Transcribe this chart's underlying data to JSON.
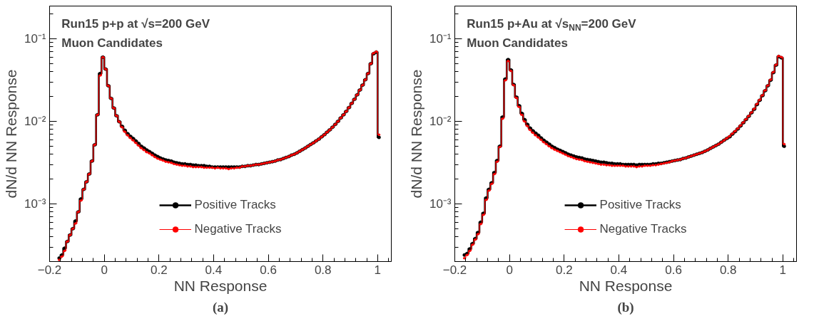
{
  "chart_data": [
    {
      "type": "step",
      "title": "Run15 p+p at √s=200 GeV",
      "subtitle": "Muon Candidates",
      "xlabel": "NN Response",
      "ylabel": "dN/d NN Response",
      "annotations": [
        "(a)"
      ],
      "x": [
        -0.165,
        -0.155,
        -0.145,
        -0.135,
        -0.125,
        -0.115,
        -0.105,
        -0.095,
        -0.085,
        -0.075,
        -0.065,
        -0.055,
        -0.045,
        -0.035,
        -0.025,
        -0.015,
        -0.005,
        0.005,
        0.015,
        0.025,
        0.035,
        0.045,
        0.055,
        0.065,
        0.075,
        0.085,
        0.095,
        0.105,
        0.115,
        0.125,
        0.135,
        0.145,
        0.155,
        0.165,
        0.175,
        0.185,
        0.195,
        0.205,
        0.215,
        0.225,
        0.235,
        0.245,
        0.255,
        0.265,
        0.275,
        0.285,
        0.295,
        0.305,
        0.315,
        0.325,
        0.335,
        0.345,
        0.355,
        0.365,
        0.375,
        0.385,
        0.395,
        0.405,
        0.415,
        0.425,
        0.435,
        0.445,
        0.455,
        0.465,
        0.475,
        0.485,
        0.495,
        0.505,
        0.515,
        0.525,
        0.535,
        0.545,
        0.555,
        0.565,
        0.575,
        0.585,
        0.595,
        0.605,
        0.615,
        0.625,
        0.635,
        0.645,
        0.655,
        0.665,
        0.675,
        0.685,
        0.695,
        0.705,
        0.715,
        0.725,
        0.735,
        0.745,
        0.755,
        0.765,
        0.775,
        0.785,
        0.795,
        0.805,
        0.815,
        0.825,
        0.835,
        0.845,
        0.855,
        0.865,
        0.875,
        0.885,
        0.895,
        0.905,
        0.915,
        0.925,
        0.935,
        0.945,
        0.955,
        0.965,
        0.975,
        0.985,
        0.995,
        1.005
      ],
      "series": [
        {
          "name": "Positive Tracks",
          "color": "#000000",
          "values": [
            0.00022,
            0.00024,
            0.00029,
            0.00035,
            0.00042,
            0.0005,
            0.00062,
            0.0008,
            0.00115,
            0.0015,
            0.00185,
            0.0023,
            0.0033,
            0.0052,
            0.012,
            0.038,
            0.06,
            0.043,
            0.027,
            0.019,
            0.0145,
            0.0117,
            0.0099,
            0.0087,
            0.0078,
            0.0071,
            0.0066,
            0.0062,
            0.0058,
            0.0054,
            0.005,
            0.00475,
            0.0045,
            0.0043,
            0.0041,
            0.0039,
            0.00375,
            0.0036,
            0.0035,
            0.0034,
            0.00335,
            0.0033,
            0.0032,
            0.00315,
            0.0031,
            0.00305,
            0.00305,
            0.003,
            0.003,
            0.00295,
            0.00295,
            0.0029,
            0.0029,
            0.0029,
            0.00285,
            0.00285,
            0.0028,
            0.0028,
            0.0028,
            0.0028,
            0.0028,
            0.0028,
            0.0028,
            0.0028,
            0.0028,
            0.0028,
            0.0028,
            0.00285,
            0.00285,
            0.0029,
            0.0029,
            0.00295,
            0.003,
            0.003,
            0.00305,
            0.0031,
            0.00315,
            0.0032,
            0.00325,
            0.0033,
            0.0034,
            0.00345,
            0.00355,
            0.00365,
            0.00375,
            0.0039,
            0.004,
            0.00415,
            0.00435,
            0.00455,
            0.00475,
            0.005,
            0.00525,
            0.0055,
            0.0058,
            0.0061,
            0.0065,
            0.0069,
            0.0074,
            0.0079,
            0.0085,
            0.0092,
            0.01,
            0.011,
            0.012,
            0.0132,
            0.0147,
            0.0165,
            0.0185,
            0.021,
            0.024,
            0.0275,
            0.032,
            0.038,
            0.05,
            0.066,
            0.069,
            0.0064
          ]
        },
        {
          "name": "Negative Tracks",
          "color": "#ff0000",
          "values": [
            0.00021,
            0.00023,
            0.00027,
            0.00035,
            0.00042,
            0.0005,
            0.00058,
            0.0008,
            0.0011,
            0.0015,
            0.00185,
            0.0023,
            0.0033,
            0.0052,
            0.012,
            0.036,
            0.06,
            0.043,
            0.027,
            0.019,
            0.0145,
            0.0117,
            0.0099,
            0.0085,
            0.0075,
            0.0068,
            0.0063,
            0.0059,
            0.0055,
            0.0051,
            0.00475,
            0.0045,
            0.00425,
            0.0041,
            0.0039,
            0.0037,
            0.00355,
            0.00345,
            0.00335,
            0.00325,
            0.0032,
            0.00315,
            0.00305,
            0.003,
            0.00295,
            0.0029,
            0.0029,
            0.00285,
            0.00285,
            0.0028,
            0.0028,
            0.0028,
            0.0028,
            0.00275,
            0.00275,
            0.00275,
            0.00275,
            0.0027,
            0.00275,
            0.0027,
            0.0027,
            0.0027,
            0.00265,
            0.0027,
            0.0027,
            0.00275,
            0.00275,
            0.00285,
            0.00285,
            0.0029,
            0.0029,
            0.00295,
            0.003,
            0.003,
            0.00305,
            0.0031,
            0.00315,
            0.0032,
            0.00325,
            0.0033,
            0.0034,
            0.00345,
            0.00355,
            0.00365,
            0.00375,
            0.0039,
            0.004,
            0.00415,
            0.00435,
            0.00455,
            0.00475,
            0.005,
            0.00525,
            0.0055,
            0.0058,
            0.0061,
            0.0065,
            0.0069,
            0.0074,
            0.0079,
            0.0085,
            0.0092,
            0.01,
            0.011,
            0.012,
            0.0132,
            0.0147,
            0.0165,
            0.0185,
            0.021,
            0.024,
            0.0275,
            0.032,
            0.038,
            0.05,
            0.067,
            0.07,
            0.0069
          ]
        }
      ],
      "xlim": [
        -0.2,
        1.05
      ],
      "ylim": [
        0.0002,
        0.25
      ],
      "xticks": [
        {
          "value": -0.2,
          "label": "−0.2"
        },
        0,
        0.2,
        0.4,
        0.6,
        0.8,
        1
      ],
      "yticks": [
        {
          "value": 0.001,
          "label": "10⁻³"
        },
        {
          "value": 0.01,
          "label": "10⁻²"
        },
        {
          "value": 0.1,
          "label": "10⁻¹"
        }
      ],
      "log": "y",
      "grid": false,
      "legend": "bottom",
      "marker": "circle",
      "line_style": "solid"
    },
    {
      "type": "step",
      "title": "Run15 p+Au at √s$_{NN}$=200 GeV",
      "subtitle": "Muon Candidates",
      "xlabel": "NN Response",
      "ylabel": "dN/d NN Response",
      "annotations": [
        "(b)"
      ],
      "x": [
        -0.165,
        -0.155,
        -0.145,
        -0.135,
        -0.125,
        -0.115,
        -0.105,
        -0.095,
        -0.085,
        -0.075,
        -0.065,
        -0.055,
        -0.045,
        -0.035,
        -0.025,
        -0.015,
        -0.005,
        0.005,
        0.015,
        0.025,
        0.035,
        0.045,
        0.055,
        0.065,
        0.075,
        0.085,
        0.095,
        0.105,
        0.115,
        0.125,
        0.135,
        0.145,
        0.155,
        0.165,
        0.175,
        0.185,
        0.195,
        0.205,
        0.215,
        0.225,
        0.235,
        0.245,
        0.255,
        0.265,
        0.275,
        0.285,
        0.295,
        0.305,
        0.315,
        0.325,
        0.335,
        0.345,
        0.355,
        0.365,
        0.375,
        0.385,
        0.395,
        0.405,
        0.415,
        0.425,
        0.435,
        0.445,
        0.455,
        0.465,
        0.475,
        0.485,
        0.495,
        0.505,
        0.515,
        0.525,
        0.535,
        0.545,
        0.555,
        0.565,
        0.575,
        0.585,
        0.595,
        0.605,
        0.615,
        0.625,
        0.635,
        0.645,
        0.655,
        0.665,
        0.675,
        0.685,
        0.695,
        0.705,
        0.715,
        0.725,
        0.735,
        0.745,
        0.755,
        0.765,
        0.775,
        0.785,
        0.795,
        0.805,
        0.815,
        0.825,
        0.835,
        0.845,
        0.855,
        0.865,
        0.875,
        0.885,
        0.895,
        0.905,
        0.915,
        0.925,
        0.935,
        0.945,
        0.955,
        0.965,
        0.975,
        0.985,
        0.995,
        1.005
      ],
      "series": [
        {
          "name": "Positive Tracks",
          "color": "#000000",
          "values": [
            0.00024,
            0.00025,
            0.000285,
            0.00033,
            0.00038,
            0.00045,
            0.0006,
            0.00077,
            0.00118,
            0.0015,
            0.0018,
            0.0024,
            0.00335,
            0.005,
            0.0113,
            0.0326,
            0.056,
            0.042,
            0.028,
            0.0197,
            0.0155,
            0.0125,
            0.0105,
            0.0092,
            0.0083,
            0.0077,
            0.0072,
            0.0068,
            0.0063,
            0.0059,
            0.0056,
            0.0053,
            0.005,
            0.0048,
            0.0046,
            0.00445,
            0.0043,
            0.00415,
            0.004,
            0.0039,
            0.0038,
            0.0037,
            0.00365,
            0.0036,
            0.0035,
            0.00345,
            0.0034,
            0.00335,
            0.0033,
            0.00325,
            0.0032,
            0.0032,
            0.00315,
            0.0031,
            0.0031,
            0.00305,
            0.00305,
            0.00305,
            0.003,
            0.003,
            0.003,
            0.003,
            0.003,
            0.00295,
            0.003,
            0.003,
            0.003,
            0.003,
            0.003,
            0.00305,
            0.00305,
            0.0031,
            0.0031,
            0.00315,
            0.0032,
            0.00325,
            0.0033,
            0.00335,
            0.0034,
            0.00345,
            0.00355,
            0.0036,
            0.0037,
            0.0038,
            0.0039,
            0.004,
            0.0041,
            0.0042,
            0.00435,
            0.0045,
            0.0047,
            0.0049,
            0.0051,
            0.0053,
            0.0056,
            0.0059,
            0.0062,
            0.0065,
            0.007,
            0.0075,
            0.0081,
            0.0088,
            0.0096,
            0.0105,
            0.0115,
            0.0127,
            0.014,
            0.016,
            0.018,
            0.0205,
            0.0235,
            0.027,
            0.0315,
            0.039,
            0.048,
            0.061,
            0.059,
            0.005
          ]
        },
        {
          "name": "Negative Tracks",
          "color": "#ff0000",
          "values": [
            0.00022,
            0.00024,
            0.00027,
            0.00032,
            0.00037,
            0.00043,
            0.00057,
            0.00074,
            0.00112,
            0.00145,
            0.00175,
            0.0023,
            0.00325,
            0.0049,
            0.0108,
            0.0315,
            0.054,
            0.041,
            0.0275,
            0.0193,
            0.015,
            0.012,
            0.01,
            0.0088,
            0.0079,
            0.0073,
            0.0068,
            0.0064,
            0.006,
            0.0056,
            0.0053,
            0.005,
            0.00475,
            0.00455,
            0.0044,
            0.00425,
            0.0041,
            0.00395,
            0.0038,
            0.0037,
            0.0036,
            0.0035,
            0.00345,
            0.0034,
            0.0033,
            0.00325,
            0.0032,
            0.00315,
            0.0031,
            0.00305,
            0.003,
            0.003,
            0.00295,
            0.00295,
            0.0029,
            0.0029,
            0.0029,
            0.0029,
            0.0029,
            0.00285,
            0.00285,
            0.00285,
            0.00285,
            0.0028,
            0.00285,
            0.00285,
            0.0029,
            0.0029,
            0.0029,
            0.00295,
            0.00295,
            0.003,
            0.00305,
            0.0031,
            0.00315,
            0.0032,
            0.0033,
            0.00335,
            0.0034,
            0.00345,
            0.00355,
            0.0036,
            0.0037,
            0.0038,
            0.0039,
            0.004,
            0.0041,
            0.0042,
            0.00435,
            0.0045,
            0.0047,
            0.0049,
            0.0051,
            0.0053,
            0.0056,
            0.0059,
            0.00625,
            0.0066,
            0.0071,
            0.0076,
            0.0082,
            0.0089,
            0.0097,
            0.0106,
            0.0116,
            0.0128,
            0.0142,
            0.0162,
            0.0182,
            0.0207,
            0.0237,
            0.0272,
            0.032,
            0.0395,
            0.0485,
            0.062,
            0.06,
            0.0053
          ]
        }
      ],
      "xlim": [
        -0.2,
        1.05
      ],
      "ylim": [
        0.0002,
        0.25
      ],
      "xticks": [
        {
          "value": -0.2,
          "label": "−0.2"
        },
        0,
        0.2,
        0.4,
        0.6,
        0.8,
        1
      ],
      "yticks": [
        {
          "value": 0.001,
          "label": "10⁻³"
        },
        {
          "value": 0.01,
          "label": "10⁻²"
        },
        {
          "value": 0.1,
          "label": "10⁻¹"
        }
      ],
      "log": "y",
      "grid": false,
      "legend": "bottom",
      "marker": "circle",
      "line_style": "solid"
    }
  ]
}
